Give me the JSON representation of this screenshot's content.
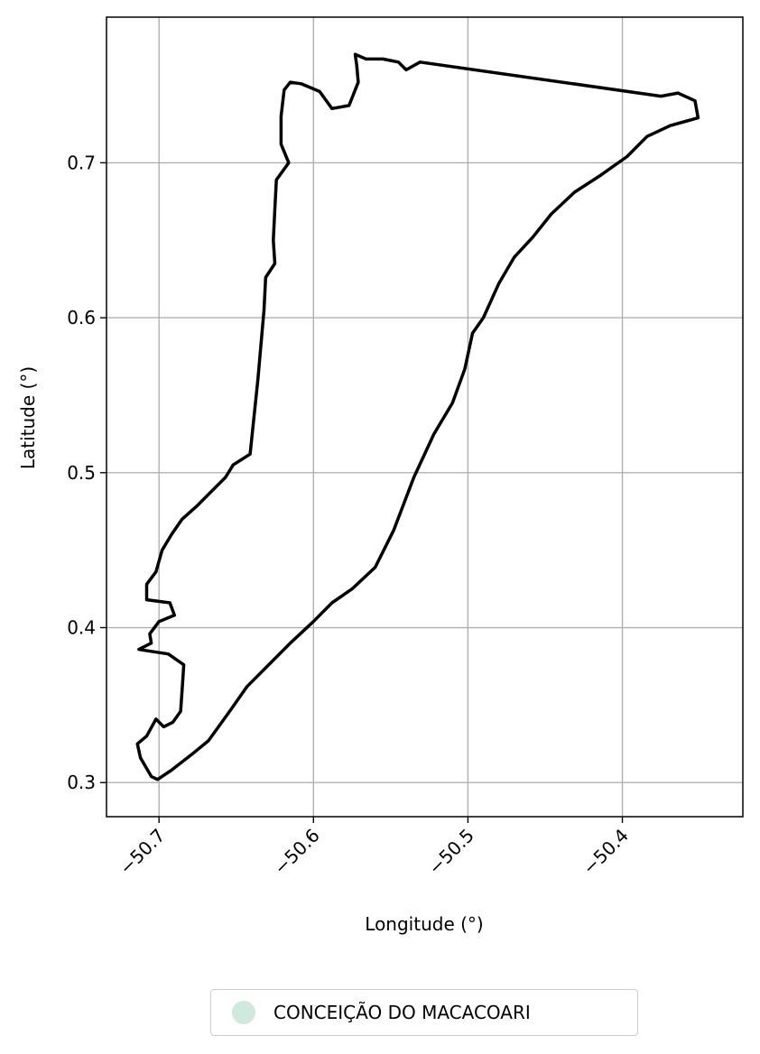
{
  "chart_data": {
    "type": "map",
    "xlabel": "Longitude (°)",
    "ylabel": "Latitude (°)",
    "xlim": [
      -50.734,
      -50.322
    ],
    "ylim": [
      0.278,
      0.794
    ],
    "x_ticks": [
      -50.7,
      -50.6,
      -50.5,
      -50.4
    ],
    "x_tick_labels": [
      "−50.7",
      "−50.6",
      "−50.5",
      "−50.4"
    ],
    "y_ticks": [
      0.3,
      0.4,
      0.5,
      0.6,
      0.7
    ],
    "y_tick_labels": [
      "0.3",
      "0.4",
      "0.5",
      "0.6",
      "0.7"
    ],
    "grid": true,
    "boundary": {
      "name": "CONCEIÇÃO DO MACACOARI",
      "fill": "#cfe9dc",
      "stroke": "#000000",
      "coordinates": [
        [
          -50.701,
          0.302
        ],
        [
          -50.692,
          0.308
        ],
        [
          -50.679,
          0.318
        ],
        [
          -50.668,
          0.327
        ],
        [
          -50.655,
          0.345
        ],
        [
          -50.643,
          0.362
        ],
        [
          -50.628,
          0.377
        ],
        [
          -50.615,
          0.39
        ],
        [
          -50.6,
          0.404
        ],
        [
          -50.588,
          0.416
        ],
        [
          -50.575,
          0.425
        ],
        [
          -50.56,
          0.439
        ],
        [
          -50.548,
          0.463
        ],
        [
          -50.535,
          0.497
        ],
        [
          -50.522,
          0.525
        ],
        [
          -50.51,
          0.545
        ],
        [
          -50.502,
          0.567
        ],
        [
          -50.497,
          0.59
        ],
        [
          -50.49,
          0.6
        ],
        [
          -50.48,
          0.622
        ],
        [
          -50.47,
          0.639
        ],
        [
          -50.458,
          0.652
        ],
        [
          -50.446,
          0.667
        ],
        [
          -50.431,
          0.681
        ],
        [
          -50.414,
          0.692
        ],
        [
          -50.397,
          0.704
        ],
        [
          -50.384,
          0.717
        ],
        [
          -50.369,
          0.724
        ],
        [
          -50.351,
          0.729
        ],
        [
          -50.353,
          0.74
        ],
        [
          -50.364,
          0.745
        ],
        [
          -50.375,
          0.743
        ],
        [
          -50.531,
          0.765
        ],
        [
          -50.54,
          0.76
        ],
        [
          -50.545,
          0.765
        ],
        [
          -50.555,
          0.767
        ],
        [
          -50.566,
          0.767
        ],
        [
          -50.573,
          0.77
        ],
        [
          -50.572,
          0.763
        ],
        [
          -50.571,
          0.752
        ],
        [
          -50.577,
          0.737
        ],
        [
          -50.588,
          0.735
        ],
        [
          -50.596,
          0.746
        ],
        [
          -50.608,
          0.751
        ],
        [
          -50.615,
          0.752
        ],
        [
          -50.619,
          0.747
        ],
        [
          -50.621,
          0.73
        ],
        [
          -50.621,
          0.712
        ],
        [
          -50.616,
          0.7
        ],
        [
          -50.624,
          0.689
        ],
        [
          -50.625,
          0.67
        ],
        [
          -50.626,
          0.65
        ],
        [
          -50.625,
          0.635
        ],
        [
          -50.631,
          0.626
        ],
        [
          -50.632,
          0.605
        ],
        [
          -50.636,
          0.56
        ],
        [
          -50.641,
          0.512
        ],
        [
          -50.652,
          0.505
        ],
        [
          -50.657,
          0.497
        ],
        [
          -50.666,
          0.488
        ],
        [
          -50.675,
          0.479
        ],
        [
          -50.685,
          0.47
        ],
        [
          -50.692,
          0.46
        ],
        [
          -50.698,
          0.45
        ],
        [
          -50.702,
          0.436
        ],
        [
          -50.708,
          0.428
        ],
        [
          -50.708,
          0.418
        ],
        [
          -50.693,
          0.416
        ],
        [
          -50.69,
          0.408
        ],
        [
          -50.7,
          0.404
        ],
        [
          -50.706,
          0.396
        ],
        [
          -50.705,
          0.39
        ],
        [
          -50.713,
          0.386
        ],
        [
          -50.707,
          0.385
        ],
        [
          -50.694,
          0.383
        ],
        [
          -50.684,
          0.376
        ],
        [
          -50.685,
          0.36
        ],
        [
          -50.686,
          0.346
        ],
        [
          -50.691,
          0.339
        ],
        [
          -50.697,
          0.336
        ],
        [
          -50.702,
          0.341
        ],
        [
          -50.708,
          0.33
        ],
        [
          -50.714,
          0.325
        ],
        [
          -50.712,
          0.316
        ],
        [
          -50.705,
          0.304
        ],
        [
          -50.701,
          0.302
        ]
      ]
    }
  },
  "legend": {
    "placement": "bottom-center",
    "items": [
      {
        "label": "CONCEIÇÃO DO MACACOARI",
        "color": "#cfe9dc"
      }
    ]
  }
}
